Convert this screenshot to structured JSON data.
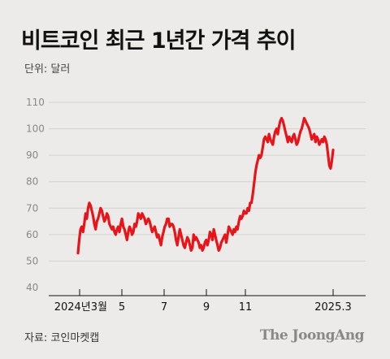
{
  "chart_data": {
    "type": "line",
    "title": "비트코인 최근 1년간 가격 추이",
    "unit_label": "단위: 달러",
    "source": "자료: 코인마켓캡",
    "brand": "The JoongAng",
    "ylim": [
      40,
      110
    ],
    "yticks": [
      40,
      50,
      60,
      70,
      80,
      90,
      100,
      110
    ],
    "xticks": [
      "2024년3월",
      "5",
      "7",
      "9",
      "11",
      "2025.3"
    ],
    "grid": true,
    "line_color": "#e8141a",
    "series": [
      {
        "values": [
          53,
          58,
          62,
          63,
          61,
          64,
          68,
          66,
          70,
          72,
          71,
          69,
          67,
          64,
          62,
          65,
          66,
          68,
          70,
          69,
          67,
          65,
          66,
          68,
          67,
          64,
          63,
          62,
          63,
          61,
          60,
          62,
          63,
          61,
          64,
          66,
          63,
          62,
          60,
          58,
          61,
          63,
          62,
          60,
          61,
          64,
          63,
          65,
          68,
          67,
          66,
          68,
          67,
          66,
          64,
          65,
          66,
          65,
          63,
          61,
          62,
          63,
          61,
          59,
          60,
          58,
          56,
          59,
          61,
          63,
          64,
          66,
          66,
          63,
          64,
          64,
          63,
          61,
          58,
          56,
          59,
          62,
          60,
          58,
          56,
          55,
          57,
          59,
          58,
          56,
          54,
          55,
          60,
          58,
          59,
          58,
          57,
          55,
          56,
          54,
          55,
          57,
          58,
          56,
          58,
          61,
          60,
          58,
          62,
          60,
          58,
          56,
          54,
          55,
          57,
          58,
          59,
          60,
          57,
          60,
          63,
          62,
          61,
          60,
          62,
          61,
          63,
          62,
          65,
          67,
          66,
          67,
          69,
          68,
          68,
          70,
          69,
          72,
          72,
          75,
          79,
          83,
          86,
          88,
          90,
          89,
          90,
          93,
          96,
          97,
          96,
          95,
          98,
          96,
          95,
          94,
          97,
          99,
          100,
          98,
          101,
          103,
          104,
          103,
          101,
          99,
          97,
          95,
          97,
          96,
          95,
          97,
          98,
          96,
          94,
          95,
          97,
          99,
          100,
          102,
          104,
          103,
          102,
          101,
          100,
          98,
          96,
          97,
          98,
          95,
          97,
          96,
          94,
          95,
          96,
          95,
          97,
          96,
          94,
          90,
          86,
          85,
          88,
          92
        ]
      }
    ]
  }
}
